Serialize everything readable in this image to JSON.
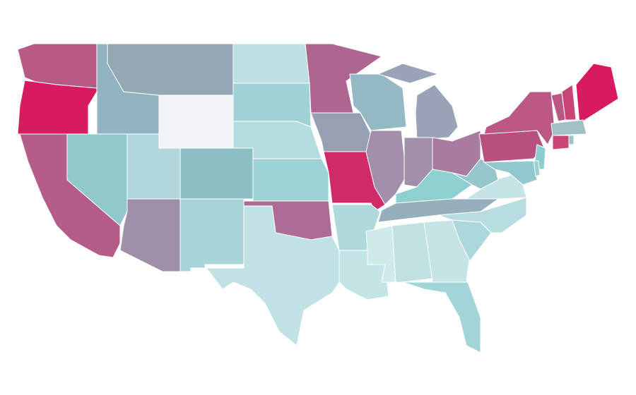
{
  "map": {
    "stroke": "#ffffff",
    "background": "#ffffff",
    "regions": [
      {
        "color": "#b85a86"
      },
      {
        "color": "#d81b60"
      },
      {
        "color": "#b65c88"
      },
      {
        "color": "#8fc9cb"
      },
      {
        "color": "#92b3c0"
      },
      {
        "color": "#94a8b6"
      },
      {
        "color": "#f2f3f5"
      },
      {
        "color": "#b0d8dc"
      },
      {
        "color": "#8cbfc4"
      },
      {
        "color": "#a08fa8"
      },
      {
        "color": "#a9d5d8"
      },
      {
        "color": "#bde1e3"
      },
      {
        "color": "#a0d2d5"
      },
      {
        "color": "#b5dcdf"
      },
      {
        "color": "#9ed3d5"
      },
      {
        "color": "#ad6c95"
      },
      {
        "color": "#c0e2e4"
      },
      {
        "color": "#ae6590"
      },
      {
        "color": "#979fb2"
      },
      {
        "color": "#d02a69"
      },
      {
        "color": "#b0d9dc"
      },
      {
        "color": "#c4e4e6"
      },
      {
        "color": "#94b8c4"
      },
      {
        "color": "#a28fab"
      },
      {
        "color": "#9ba3b8"
      },
      {
        "color": "#9ba3b8"
      },
      {
        "color": "#a28fab"
      },
      {
        "color": "#a87c9e"
      },
      {
        "color": "#8ecfd0"
      },
      {
        "color": "#96afbd"
      },
      {
        "color": "#d0eaea"
      },
      {
        "color": "#bfe1e2"
      },
      {
        "color": "#c6e4e6"
      },
      {
        "color": "#a2d5d8"
      },
      {
        "color": "#add8db"
      },
      {
        "color": "#b8dde0"
      },
      {
        "color": "#c5e4e6"
      },
      {
        "color": "#98c6cd"
      },
      {
        "color": "#b8517f"
      },
      {
        "color": "#bb5884"
      },
      {
        "color": "#8ccdcf"
      },
      {
        "color": "#90c8ce"
      },
      {
        "color": "#9fd0d4"
      },
      {
        "color": "#ba5785"
      },
      {
        "color": "#c84575"
      },
      {
        "color": "#d81b60"
      },
      {
        "color": "#a2c0c8"
      },
      {
        "color": "#c84575"
      },
      {
        "color": "#a2c0c8"
      }
    ]
  }
}
